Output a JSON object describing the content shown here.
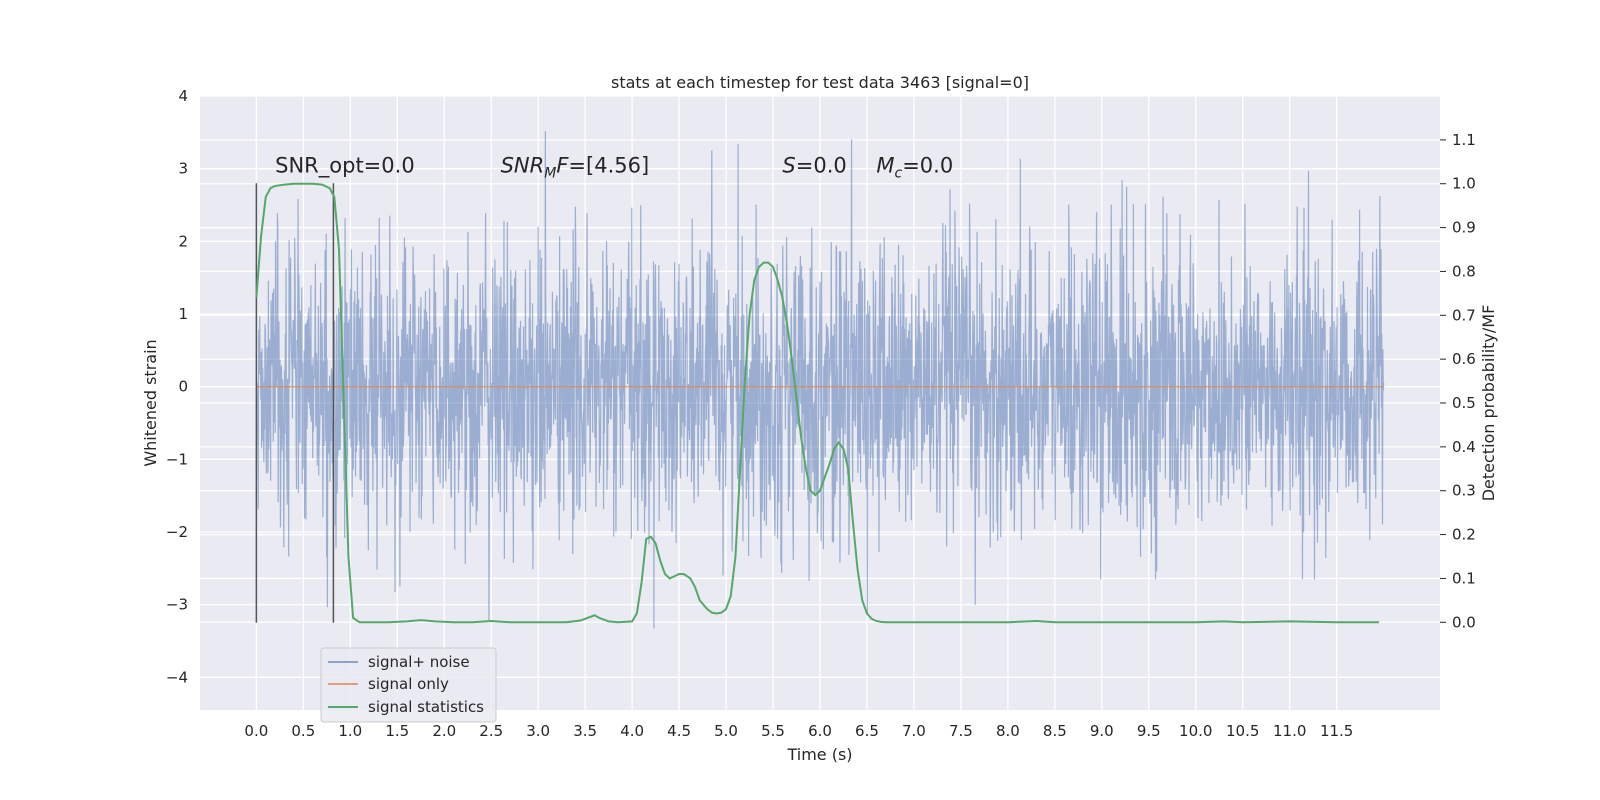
{
  "chart_data": {
    "type": "line",
    "title": "stats at each timestep for test data 3463 [signal=0]",
    "xlabel": "Time (s)",
    "ylabel": "Whitened strain",
    "ylabel_right": "Detection probability/MF",
    "xlim": [
      -0.6,
      12.6
    ],
    "ylim": [
      -4.45,
      4.0
    ],
    "ylim_right": [
      -0.2,
      1.2
    ],
    "x_ticks": [
      0.0,
      0.5,
      1.0,
      1.5,
      2.0,
      2.5,
      3.0,
      3.5,
      4.0,
      4.5,
      5.0,
      5.5,
      6.0,
      6.5,
      7.0,
      7.5,
      8.0,
      8.5,
      9.0,
      9.5,
      10.0,
      10.5,
      11.0,
      11.5
    ],
    "x_tick_labels": [
      "0.0",
      "0.5",
      "1.0",
      "1.5",
      "2.0",
      "2.5",
      "3.0",
      "3.5",
      "4.0",
      "4.5",
      "5.0",
      "5.5",
      "6.0",
      "6.5",
      "7.0",
      "7.5",
      "8.0",
      "8.5",
      "9.0",
      "9.5",
      "10.0",
      "10.5",
      "11.0",
      "11.5"
    ],
    "y_ticks": [
      -4,
      -3,
      -2,
      -1,
      0,
      1,
      2,
      3,
      4
    ],
    "y_tick_labels": [
      "−4",
      "−3",
      "−2",
      "−1",
      "0",
      "1",
      "2",
      "3",
      "4"
    ],
    "y_right_ticks": [
      0.0,
      0.1,
      0.2,
      0.3,
      0.4,
      0.5,
      0.6,
      0.7,
      0.8,
      0.9,
      1.0,
      1.1
    ],
    "y_right_tick_labels": [
      "0.0",
      "0.1",
      "0.2",
      "0.3",
      "0.4",
      "0.5",
      "0.6",
      "0.7",
      "0.8",
      "0.9",
      "1.0",
      "1.1"
    ],
    "grid": true,
    "legend_position": "lower-left",
    "series": [
      {
        "name": "signal+ noise",
        "axis": "left",
        "color": "#4c72b0",
        "kind": "noise",
        "t_range": [
          0.0,
          12.0
        ],
        "sigma": 1.0,
        "typical_range": [
          -3.3,
          3.6
        ]
      },
      {
        "name": "signal only",
        "axis": "left",
        "color": "#dd8452",
        "x": [
          0.0,
          12.0
        ],
        "y": [
          0.0,
          0.0
        ]
      },
      {
        "name": "signal statistics",
        "axis": "right",
        "color": "#55a868",
        "x": [
          0.0,
          0.05,
          0.1,
          0.15,
          0.2,
          0.3,
          0.4,
          0.5,
          0.6,
          0.7,
          0.78,
          0.83,
          0.88,
          0.93,
          0.98,
          1.03,
          1.1,
          1.2,
          1.4,
          1.6,
          1.75,
          1.9,
          2.1,
          2.3,
          2.5,
          2.7,
          2.9,
          3.1,
          3.3,
          3.45,
          3.55,
          3.6,
          3.65,
          3.75,
          3.85,
          4.0,
          4.05,
          4.1,
          4.15,
          4.2,
          4.25,
          4.3,
          4.35,
          4.4,
          4.45,
          4.5,
          4.55,
          4.62,
          4.67,
          4.72,
          4.8,
          4.85,
          4.9,
          4.95,
          5.0,
          5.05,
          5.1,
          5.15,
          5.2,
          5.25,
          5.3,
          5.35,
          5.4,
          5.45,
          5.5,
          5.55,
          5.6,
          5.65,
          5.7,
          5.75,
          5.8,
          5.85,
          5.9,
          5.95,
          6.0,
          6.05,
          6.1,
          6.15,
          6.2,
          6.25,
          6.3,
          6.35,
          6.4,
          6.45,
          6.5,
          6.55,
          6.6,
          6.65,
          6.7,
          6.8,
          7.0,
          7.5,
          8.0,
          8.3,
          8.5,
          9.0,
          9.5,
          10.0,
          10.3,
          10.5,
          11.0,
          11.5,
          11.95
        ],
        "y": [
          0.74,
          0.88,
          0.97,
          0.99,
          0.995,
          0.998,
          1.0,
          1.0,
          1.0,
          0.998,
          0.99,
          0.97,
          0.85,
          0.5,
          0.15,
          0.01,
          0.0,
          0.0,
          0.0,
          0.002,
          0.005,
          0.002,
          0.0,
          0.0,
          0.003,
          0.0,
          0.0,
          0.0,
          0.0,
          0.004,
          0.012,
          0.016,
          0.01,
          0.002,
          0.0,
          0.002,
          0.02,
          0.09,
          0.19,
          0.195,
          0.18,
          0.14,
          0.11,
          0.1,
          0.105,
          0.11,
          0.11,
          0.1,
          0.08,
          0.05,
          0.03,
          0.022,
          0.02,
          0.022,
          0.03,
          0.06,
          0.15,
          0.35,
          0.55,
          0.7,
          0.78,
          0.81,
          0.82,
          0.82,
          0.81,
          0.78,
          0.74,
          0.68,
          0.6,
          0.51,
          0.42,
          0.35,
          0.3,
          0.29,
          0.3,
          0.33,
          0.36,
          0.395,
          0.41,
          0.395,
          0.35,
          0.23,
          0.12,
          0.05,
          0.02,
          0.008,
          0.003,
          0.001,
          0.0,
          0.0,
          0.0,
          0.0,
          0.0,
          0.003,
          0.0,
          0.0,
          0.0,
          0.0,
          0.002,
          0.0,
          0.002,
          0.0,
          0.0
        ]
      }
    ],
    "vertical_markers": [
      {
        "x": 0.0,
        "y_range": [
          -3.25,
          2.8
        ]
      },
      {
        "x": 0.82,
        "y_range": [
          -3.25,
          2.8
        ]
      }
    ],
    "annotations": [
      {
        "text": "SNR_opt=0.0",
        "x": 0.2,
        "y": 2.95
      },
      {
        "text": "SNR_MF=[4.56]",
        "x": 2.6,
        "y": 2.95
      },
      {
        "text": "S=0.0",
        "x": 5.6,
        "y": 2.95
      },
      {
        "text": "M_c=0.0",
        "x": 6.6,
        "y": 2.95
      }
    ]
  }
}
